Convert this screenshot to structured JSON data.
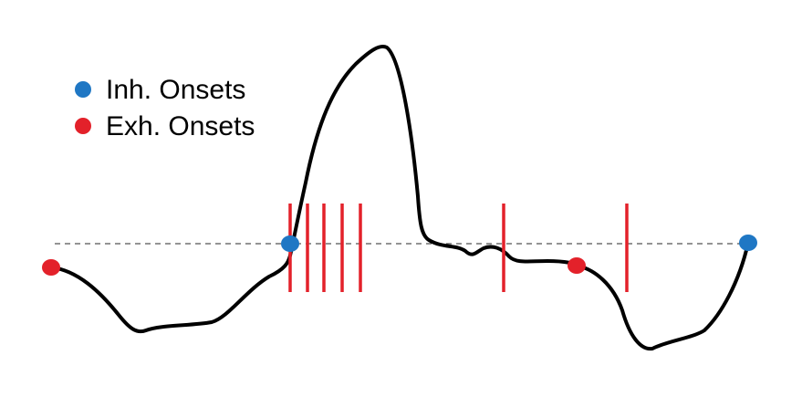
{
  "legend": {
    "items": [
      {
        "label": "Inh. Onsets",
        "color": "#1f77c4",
        "marker": "filled-circle"
      },
      {
        "label": "Exh. Onsets",
        "color": "#e3212a",
        "marker": "filled-circle"
      }
    ]
  },
  "colors": {
    "signal": "#000000",
    "baseline": "#555555",
    "spike": "#e3212a",
    "inhalation": "#1f77c4",
    "exhalation": "#e3212a"
  }
}
